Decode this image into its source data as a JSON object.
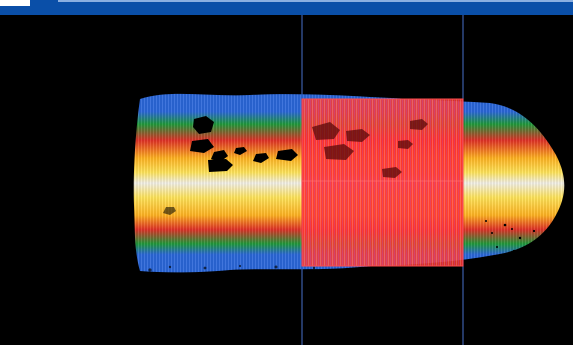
{
  "window": {
    "title": "",
    "accent": "#0a4fa8"
  },
  "viewer": {
    "background": "#000000",
    "colors": {
      "blue": "#2b67d9",
      "green": "#1f9a3a",
      "yellow": "#ffe45a",
      "red": "#e03127",
      "pale": "#f2f0e8",
      "magenta": "#b04ad0",
      "gridline": "#3c5ea8"
    }
  }
}
